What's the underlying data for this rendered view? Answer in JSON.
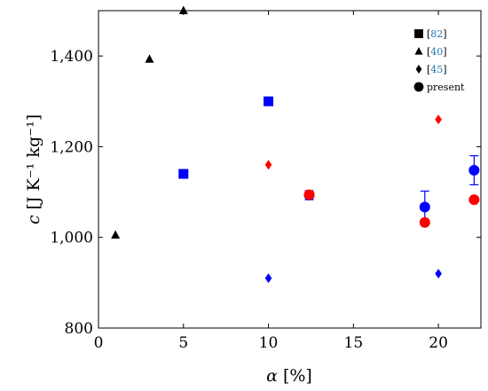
{
  "chart_data": {
    "type": "scatter",
    "title": "",
    "xlabel": "α [%]",
    "ylabel": "c [J K⁻¹ kg⁻¹]",
    "xlim": [
      0,
      22.5
    ],
    "ylim": [
      800,
      1500
    ],
    "x_ticks": [
      0,
      5,
      10,
      15,
      20
    ],
    "y_ticks": [
      800,
      1000,
      1200,
      1400
    ],
    "x_tick_labels": [
      "0",
      "5",
      "10",
      "15",
      "20"
    ],
    "y_tick_labels": [
      "800",
      "1,000",
      "1,200",
      "1,400"
    ],
    "grid": false,
    "legend_position": "top-right",
    "legend": [
      {
        "marker": "square",
        "prefix": "[",
        "ref": "82",
        "suffix": "]"
      },
      {
        "marker": "triangle",
        "prefix": "[",
        "ref": "40",
        "suffix": "]"
      },
      {
        "marker": "diamond",
        "prefix": "[",
        "ref": "45",
        "suffix": "]"
      },
      {
        "marker": "circle",
        "prefix": "",
        "ref": "",
        "suffix": "present"
      }
    ],
    "colors": {
      "blue": "#0000ff",
      "red": "#ff0000",
      "black": "#000000"
    },
    "series": [
      {
        "marker": "square",
        "color": "#0000ff",
        "points": [
          {
            "x": 5,
            "y": 1140
          },
          {
            "x": 10,
            "y": 1300
          }
        ]
      },
      {
        "marker": "triangle",
        "color": "#000000",
        "points": [
          {
            "x": 1,
            "y": 1005
          },
          {
            "x": 3,
            "y": 1393
          },
          {
            "x": 5,
            "y": 1500
          }
        ]
      },
      {
        "marker": "diamond",
        "color": "#ff0000",
        "points": [
          {
            "x": 10,
            "y": 1160
          },
          {
            "x": 20,
            "y": 1260
          }
        ]
      },
      {
        "marker": "diamond",
        "color": "#0000ff",
        "points": [
          {
            "x": 10,
            "y": 910
          },
          {
            "x": 20,
            "y": 920
          }
        ]
      },
      {
        "marker": "circle",
        "color": "#0000ff",
        "points": [
          {
            "x": 12.4,
            "y": 1093,
            "err": 10
          },
          {
            "x": 19.2,
            "y": 1067,
            "err": 35
          },
          {
            "x": 22.1,
            "y": 1148,
            "err": 32
          }
        ]
      },
      {
        "marker": "circle",
        "color": "#ff0000",
        "points": [
          {
            "x": 12.4,
            "y": 1094
          },
          {
            "x": 19.2,
            "y": 1033
          },
          {
            "x": 22.1,
            "y": 1083
          }
        ]
      }
    ]
  }
}
